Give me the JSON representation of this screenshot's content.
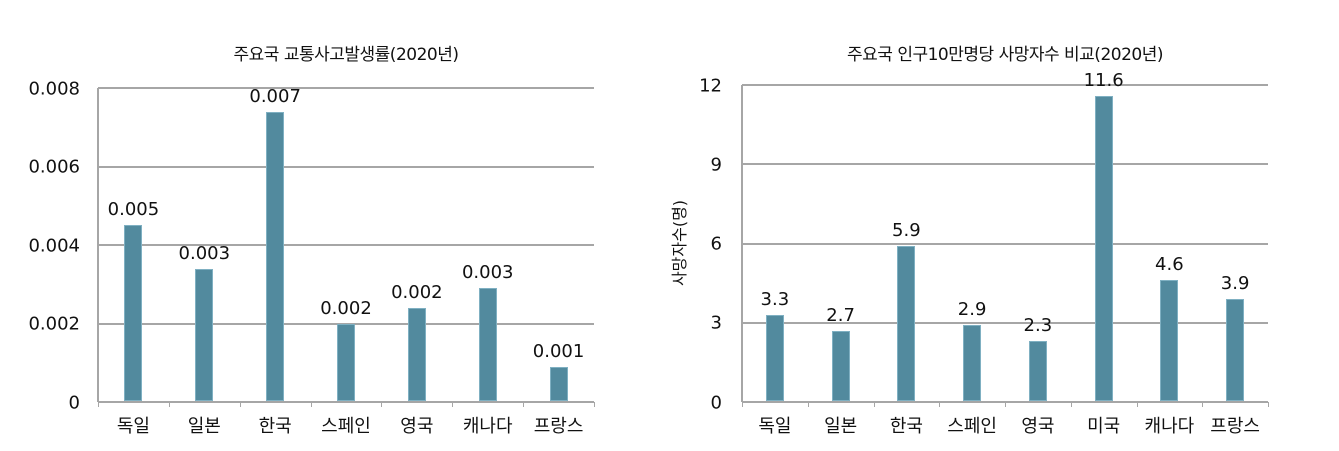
{
  "chart_data": [
    {
      "type": "bar",
      "title": "주요국 교통사고발생률(2020년)",
      "xlabel": "",
      "ylabel": "",
      "categories": [
        "독일",
        "일본",
        "한국",
        "스페인",
        "영국",
        "캐나다",
        "프랑스"
      ],
      "values": [
        0.0045,
        0.0034,
        0.0074,
        0.002,
        0.0024,
        0.0029,
        0.0009
      ],
      "data_labels": [
        "0.005",
        "0.003",
        "0.007",
        "0.002",
        "0.002",
        "0.003",
        "0.001"
      ],
      "ylim": [
        0,
        0.008
      ],
      "yticks": [
        "0",
        "0.002",
        "0.004",
        "0.006",
        "0.008"
      ],
      "grid": true,
      "legend": null,
      "bar_color": "#528a9e"
    },
    {
      "type": "bar",
      "title": "주요국 인구10만명당 사망자수 비교(2020년)",
      "xlabel": "",
      "ylabel": "사망자수(명)",
      "categories": [
        "독일",
        "일본",
        "한국",
        "스페인",
        "영국",
        "미국",
        "캐나다",
        "프랑스"
      ],
      "values": [
        3.3,
        2.7,
        5.9,
        2.9,
        2.3,
        11.6,
        4.6,
        3.9
      ],
      "data_labels": [
        "3.3",
        "2.7",
        "5.9",
        "2.9",
        "2.3",
        "11.6",
        "4.6",
        "3.9"
      ],
      "ylim": [
        0,
        12
      ],
      "yticks": [
        "0",
        "3",
        "6",
        "9",
        "12"
      ],
      "grid": true,
      "legend": null,
      "bar_color": "#528a9e"
    }
  ],
  "left": {
    "title": "주요국 교통사고발생률(2020년)",
    "yticks": [
      "0",
      "0.002",
      "0.004",
      "0.006",
      "0.008"
    ],
    "categories": [
      "독일",
      "일본",
      "한국",
      "스페인",
      "영국",
      "캐나다",
      "프랑스"
    ],
    "labels": [
      "0.005",
      "0.003",
      "0.007",
      "0.002",
      "0.002",
      "0.003",
      "0.001"
    ]
  },
  "right": {
    "title": "주요국 인구10만명당 사망자수 비교(2020년)",
    "ylabel": "사망자수(명)",
    "yticks": [
      "0",
      "3",
      "6",
      "9",
      "12"
    ],
    "categories": [
      "독일",
      "일본",
      "한국",
      "스페인",
      "영국",
      "미국",
      "캐나다",
      "프랑스"
    ],
    "labels": [
      "3.3",
      "2.7",
      "5.9",
      "2.9",
      "2.3",
      "11.6",
      "4.6",
      "3.9"
    ]
  }
}
